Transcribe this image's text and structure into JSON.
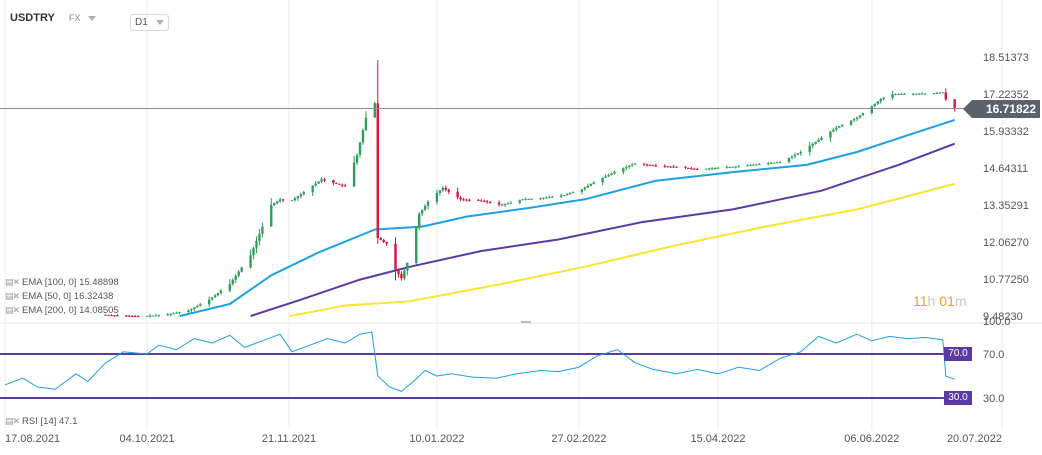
{
  "header": {
    "symbol": "USDTRY",
    "asset_class": "FX",
    "timeframe": "D1"
  },
  "legend": {
    "ema_100": "EMA [100, 0] 15.48898",
    "ema_50": "EMA [50, 0] 16.32438",
    "ema_200": "EMA [200, 0] 14.08505",
    "rsi": "RSI [14] 47.1"
  },
  "countdown": {
    "hours": "11",
    "h": "h",
    "minutes": "01",
    "m": "m"
  },
  "current_price": "16.71822",
  "rsi_levels": {
    "upper": "70.0",
    "lower": "30.0"
  },
  "colors": {
    "up": "#2e9e5b",
    "down": "#d6163e",
    "ema100": "#5b3aa6",
    "ema50": "#1fa0e0",
    "ema200": "#f7e531",
    "rsi": "#1fa0e0",
    "rsi_level": "#5b3aa6",
    "price_line": "#8a8f96"
  },
  "chart_data": {
    "type": "candlestick",
    "price_axis_ticks": [
      "18.51373",
      "17.22352",
      "15.93332",
      "14.64311",
      "13.35291",
      "12.06270",
      "10.77250",
      "9.48230"
    ],
    "rsi_axis_ticks": [
      "100.0",
      "70.0",
      "30.0"
    ],
    "x_tick_labels": [
      "17.08.2021",
      "04.10.2021",
      "21.11.2021",
      "10.01.2022",
      "27.02.2022",
      "15.04.2022",
      "06.06.2022",
      "20.07.2022"
    ],
    "x_ticks": [
      "2021-08-17",
      "2021-10-04",
      "2021-11-21",
      "2022-01-10",
      "2022-02-27",
      "2022-04-15",
      "2022-06-06",
      "2022-07-20"
    ],
    "price_range": [
      9.3,
      18.9
    ],
    "rsi_range": [
      0,
      100
    ],
    "price_path": [
      [
        "2021-09-20",
        9.52
      ],
      [
        "2021-10-01",
        9.47
      ],
      [
        "2021-10-10",
        9.52
      ],
      [
        "2021-10-18",
        9.68
      ],
      [
        "2021-10-25",
        10.05
      ],
      [
        "2021-11-01",
        10.6
      ],
      [
        "2021-11-08",
        11.6
      ],
      [
        "2021-11-12",
        12.6
      ],
      [
        "2021-11-15",
        13.35
      ],
      [
        "2021-11-18",
        13.55
      ],
      [
        "2021-11-21",
        13.45
      ],
      [
        "2021-11-26",
        13.8
      ],
      [
        "2021-12-02",
        14.25
      ],
      [
        "2021-12-10",
        14.0
      ],
      [
        "2021-12-14",
        15.1
      ],
      [
        "2021-12-17",
        16.4
      ],
      [
        "2021-12-20",
        16.9
      ],
      [
        "2021-12-21",
        12.2
      ],
      [
        "2021-12-24",
        12.0
      ],
      [
        "2021-12-27",
        11.1
      ],
      [
        "2021-12-29",
        10.8
      ],
      [
        "2022-01-01",
        11.6
      ],
      [
        "2022-01-04",
        13.05
      ],
      [
        "2022-01-08",
        13.6
      ],
      [
        "2022-01-12",
        13.95
      ],
      [
        "2022-01-18",
        13.55
      ],
      [
        "2022-01-25",
        13.5
      ],
      [
        "2022-02-01",
        13.35
      ],
      [
        "2022-02-08",
        13.55
      ],
      [
        "2022-02-15",
        13.6
      ],
      [
        "2022-02-22",
        13.7
      ],
      [
        "2022-02-28",
        13.9
      ],
      [
        "2022-03-05",
        14.2
      ],
      [
        "2022-03-12",
        14.55
      ],
      [
        "2022-03-18",
        14.8
      ],
      [
        "2022-03-25",
        14.72
      ],
      [
        "2022-04-01",
        14.68
      ],
      [
        "2022-04-08",
        14.6
      ],
      [
        "2022-04-15",
        14.65
      ],
      [
        "2022-04-22",
        14.7
      ],
      [
        "2022-04-29",
        14.78
      ],
      [
        "2022-05-06",
        14.85
      ],
      [
        "2022-05-13",
        15.2
      ],
      [
        "2022-05-20",
        15.7
      ],
      [
        "2022-05-25",
        16.05
      ],
      [
        "2022-06-01",
        16.4
      ],
      [
        "2022-06-06",
        16.8
      ],
      [
        "2022-06-09",
        17.05
      ],
      [
        "2022-06-13",
        17.22
      ],
      [
        "2022-06-20",
        17.23
      ],
      [
        "2022-06-27",
        17.25
      ],
      [
        "2022-06-30",
        17.28
      ],
      [
        "2022-07-02",
        16.8
      ],
      [
        "2022-07-04",
        16.71822
      ]
    ],
    "ema50_path": [
      [
        "2021-10-15",
        9.48
      ],
      [
        "2021-11-01",
        9.9
      ],
      [
        "2021-11-15",
        10.9
      ],
      [
        "2021-12-01",
        11.7
      ],
      [
        "2021-12-20",
        12.5
      ],
      [
        "2022-01-05",
        12.6
      ],
      [
        "2022-01-20",
        12.95
      ],
      [
        "2022-02-10",
        13.25
      ],
      [
        "2022-03-01",
        13.55
      ],
      [
        "2022-03-25",
        14.2
      ],
      [
        "2022-04-20",
        14.5
      ],
      [
        "2022-05-15",
        14.75
      ],
      [
        "2022-06-01",
        15.2
      ],
      [
        "2022-06-20",
        15.85
      ],
      [
        "2022-07-04",
        16.32
      ]
    ],
    "ema100_path": [
      [
        "2021-11-08",
        9.48
      ],
      [
        "2021-11-25",
        10.05
      ],
      [
        "2021-12-15",
        10.75
      ],
      [
        "2022-01-01",
        11.2
      ],
      [
        "2022-01-25",
        11.75
      ],
      [
        "2022-02-20",
        12.15
      ],
      [
        "2022-03-20",
        12.75
      ],
      [
        "2022-04-20",
        13.2
      ],
      [
        "2022-05-20",
        13.85
      ],
      [
        "2022-06-15",
        14.75
      ],
      [
        "2022-07-04",
        15.49
      ]
    ],
    "ema200_path": [
      [
        "2021-11-21",
        9.48
      ],
      [
        "2021-12-10",
        9.85
      ],
      [
        "2022-01-01",
        10.0
      ],
      [
        "2022-02-01",
        10.6
      ],
      [
        "2022-03-01",
        11.2
      ],
      [
        "2022-04-01",
        11.95
      ],
      [
        "2022-05-01",
        12.6
      ],
      [
        "2022-06-01",
        13.2
      ],
      [
        "2022-07-04",
        14.09
      ]
    ],
    "rsi_path": [
      [
        "2021-08-17",
        42
      ],
      [
        "2021-08-23",
        48
      ],
      [
        "2021-08-28",
        40
      ],
      [
        "2021-09-03",
        38
      ],
      [
        "2021-09-10",
        52
      ],
      [
        "2021-09-14",
        45
      ],
      [
        "2021-09-20",
        62
      ],
      [
        "2021-09-26",
        72
      ],
      [
        "2021-10-04",
        70
      ],
      [
        "2021-10-08",
        78
      ],
      [
        "2021-10-14",
        74
      ],
      [
        "2021-10-20",
        84
      ],
      [
        "2021-10-26",
        80
      ],
      [
        "2021-11-01",
        87
      ],
      [
        "2021-11-06",
        76
      ],
      [
        "2021-11-12",
        82
      ],
      [
        "2021-11-18",
        88
      ],
      [
        "2021-11-22",
        72
      ],
      [
        "2021-11-28",
        78
      ],
      [
        "2021-12-04",
        84
      ],
      [
        "2021-12-10",
        80
      ],
      [
        "2021-12-15",
        88
      ],
      [
        "2021-12-19",
        90
      ],
      [
        "2021-12-21",
        50
      ],
      [
        "2021-12-25",
        40
      ],
      [
        "2021-12-29",
        36
      ],
      [
        "2022-01-02",
        45
      ],
      [
        "2022-01-06",
        55
      ],
      [
        "2022-01-10",
        50
      ],
      [
        "2022-01-15",
        52
      ],
      [
        "2022-01-22",
        49
      ],
      [
        "2022-01-30",
        48
      ],
      [
        "2022-02-06",
        52
      ],
      [
        "2022-02-14",
        55
      ],
      [
        "2022-02-20",
        54
      ],
      [
        "2022-02-27",
        58
      ],
      [
        "2022-03-05",
        68
      ],
      [
        "2022-03-12",
        74
      ],
      [
        "2022-03-18",
        62
      ],
      [
        "2022-03-24",
        56
      ],
      [
        "2022-04-01",
        52
      ],
      [
        "2022-04-08",
        56
      ],
      [
        "2022-04-15",
        52
      ],
      [
        "2022-04-22",
        58
      ],
      [
        "2022-04-29",
        55
      ],
      [
        "2022-05-06",
        66
      ],
      [
        "2022-05-13",
        72
      ],
      [
        "2022-05-19",
        86
      ],
      [
        "2022-05-25",
        80
      ],
      [
        "2022-06-01",
        88
      ],
      [
        "2022-06-06",
        82
      ],
      [
        "2022-06-12",
        86
      ],
      [
        "2022-06-18",
        84
      ],
      [
        "2022-06-24",
        85
      ],
      [
        "2022-06-30",
        83
      ],
      [
        "2022-07-01",
        50
      ],
      [
        "2022-07-04",
        47.1
      ]
    ]
  }
}
